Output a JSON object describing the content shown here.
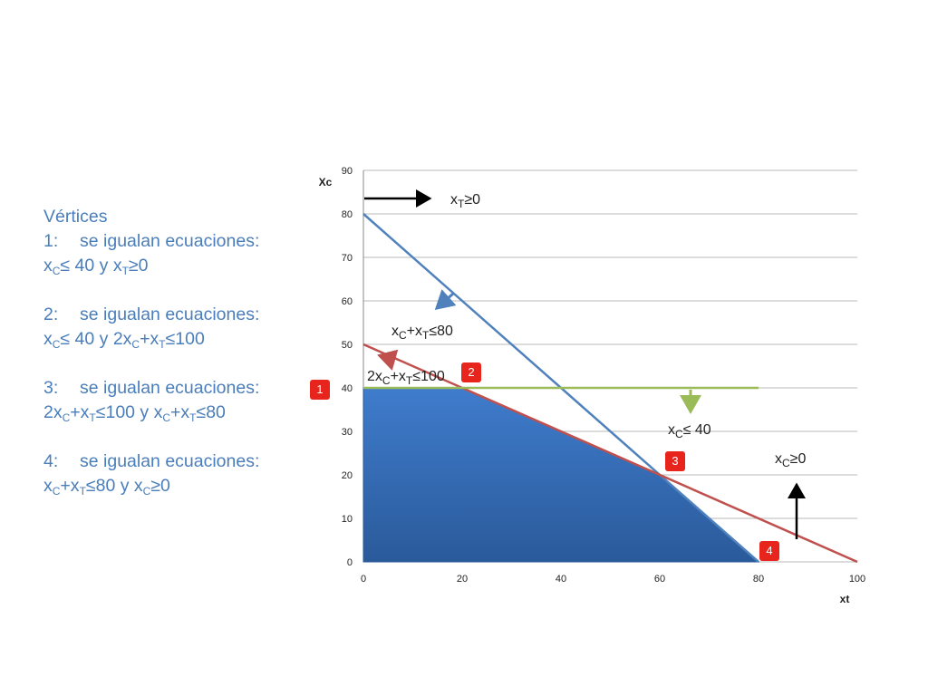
{
  "text_panel": {
    "heading": "Vértices",
    "items": [
      {
        "num": "1:",
        "title": "se igualan ecuaciones:",
        "detail": [
          "x",
          "C",
          "≤ 40 y x",
          "T",
          "≥0"
        ]
      },
      {
        "num": "2:",
        "title": "se igualan ecuaciones:",
        "detail": [
          "x",
          "C",
          "≤ 40 y 2x",
          "C",
          "+x",
          "T",
          "≤100"
        ]
      },
      {
        "num": "3:",
        "title": "se igualan ecuaciones:",
        "detail": [
          "2x",
          "C",
          "+x",
          "T",
          "≤100 y x",
          "C",
          "+x",
          "T",
          "≤80"
        ]
      },
      {
        "num": "4:",
        "title": "se igualan ecuaciones:",
        "detail": [
          "x",
          "C",
          "+x",
          "T",
          "≤80 y x",
          "C",
          "≥0"
        ]
      }
    ]
  },
  "chart_data": {
    "type": "line",
    "xlabel": "xt",
    "ylabel": "Xc",
    "xlim": [
      0,
      100
    ],
    "ylim": [
      0,
      90
    ],
    "x_ticks": [
      0,
      20,
      40,
      60,
      80,
      100
    ],
    "y_ticks": [
      0,
      10,
      20,
      30,
      40,
      50,
      60,
      70,
      80,
      90
    ],
    "grid": true,
    "series": [
      {
        "label_parts": [
          "x",
          "C",
          "+x",
          "T",
          "≤80"
        ],
        "color": "#4f81bd",
        "points": [
          [
            0,
            80
          ],
          [
            80,
            0
          ]
        ]
      },
      {
        "label_parts": [
          "2x",
          "C",
          "+x",
          "T",
          "≤100"
        ],
        "color": "#c0504d",
        "points": [
          [
            0,
            50
          ],
          [
            100,
            0
          ]
        ]
      },
      {
        "label_parts": [
          "x",
          "C",
          "≤ 40"
        ],
        "color": "#9bbb59",
        "points": [
          [
            0,
            40
          ],
          [
            80,
            40
          ]
        ]
      }
    ],
    "feasible_region": {
      "color": "#3a6fb3",
      "points": [
        [
          0,
          0
        ],
        [
          0,
          40
        ],
        [
          20,
          40
        ],
        [
          60,
          20
        ],
        [
          80,
          0
        ]
      ]
    },
    "constraint_labels": [
      {
        "parts": [
          "x",
          "T",
          "≥0"
        ]
      },
      {
        "parts": [
          "x",
          "C",
          "≥0"
        ]
      }
    ],
    "vertices": [
      {
        "label": "1",
        "x": 0,
        "y": 40
      },
      {
        "label": "2",
        "x": 20,
        "y": 40
      },
      {
        "label": "3",
        "x": 60,
        "y": 20
      },
      {
        "label": "4",
        "x": 80,
        "y": 0
      }
    ],
    "arrow_colors": {
      "black": "#000000",
      "blue": "#4f81bd",
      "red": "#c0504d",
      "green": "#9bbb59"
    },
    "vertex_marker_color": "#e8251d"
  }
}
